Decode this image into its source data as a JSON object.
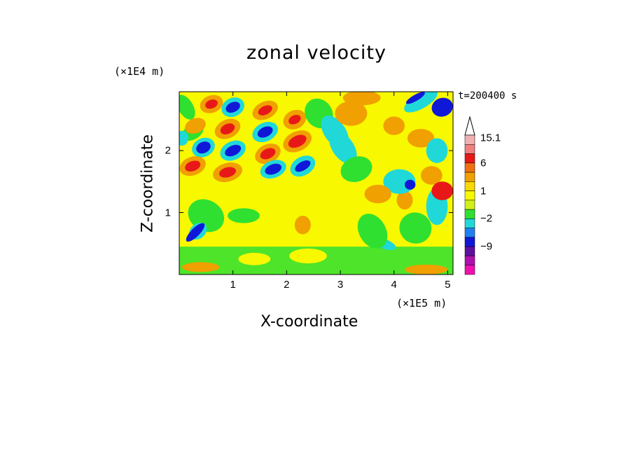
{
  "chart_data": {
    "type": "heatmap",
    "title": "zonal velocity",
    "xlabel": "X-coordinate",
    "ylabel": "Z-coordinate",
    "x_unit_label": "(×1E5 m)",
    "z_unit_label": "(×1E4 m)",
    "time_label": "t=200400 s",
    "x_ticks": [
      "1",
      "2",
      "3",
      "4",
      "5"
    ],
    "x_tick_values": [
      1,
      2,
      3,
      4,
      5
    ],
    "z_ticks": [
      "1",
      "2"
    ],
    "z_tick_values": [
      1,
      2
    ],
    "xlim": [
      0,
      5.1
    ],
    "zlim": [
      0,
      2.95
    ],
    "colorbar": {
      "labels": [
        "15.1",
        "6",
        "1",
        "−2",
        "−9"
      ],
      "label_values": [
        15.1,
        6,
        1,
        -2,
        -9
      ],
      "colors": [
        "#f0b0b0",
        "#f08080",
        "#e81818",
        "#f07010",
        "#f0a000",
        "#f8d800",
        "#f8f800",
        "#d0f018",
        "#30e030",
        "#20d8d8",
        "#2080f0",
        "#1018d8",
        "#6010a0",
        "#b010b0",
        "#f010b0"
      ]
    },
    "colors": {
      "yellow": "#f8f800",
      "orange": "#f0a000",
      "green": "#30e030",
      "cyan": "#20d8d8",
      "blue": "#1018d8",
      "red": "#e81818"
    }
  }
}
